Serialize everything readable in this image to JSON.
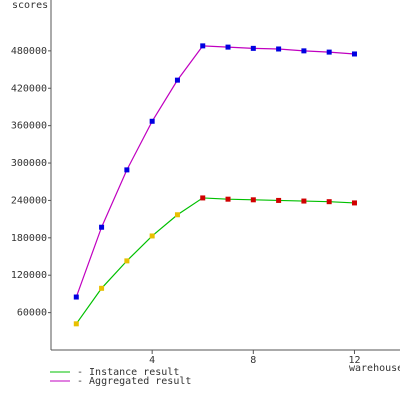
{
  "chart_data": {
    "type": "line",
    "y_label": "scores",
    "x_label": "warehouses",
    "x": [
      1,
      2,
      3,
      4,
      5,
      6,
      7,
      8,
      9,
      10,
      11,
      12
    ],
    "series": [
      {
        "name": "- Instance result",
        "color": "#00c000",
        "marker_colors": [
          "#e8c000",
          "#e8c000",
          "#e8c000",
          "#e8c000",
          "#e8c000",
          "#d00000",
          "#d00000",
          "#d00000",
          "#d00000",
          "#d00000",
          "#d00000",
          "#d00000"
        ],
        "values": [
          42000,
          99000,
          143000,
          183000,
          217000,
          244000,
          242000,
          241000,
          240000,
          239000,
          238000,
          236000
        ]
      },
      {
        "name": "- Aggregated result",
        "color": "#c000c0",
        "marker_colors": [
          "#0000e0",
          "#0000e0",
          "#0000e0",
          "#0000e0",
          "#0000e0",
          "#0000e0",
          "#0000e0",
          "#0000e0",
          "#0000e0",
          "#0000e0",
          "#0000e0",
          "#0000e0"
        ],
        "values": [
          85000,
          197000,
          289000,
          367000,
          433000,
          488000,
          486000,
          484000,
          483000,
          480000,
          478000,
          475000
        ]
      }
    ],
    "xlim": [
      0,
      13.8
    ],
    "ylim": [
      0,
      560000
    ],
    "xticks": [
      4,
      8,
      12
    ],
    "yticks": [
      60000,
      120000,
      180000,
      240000,
      300000,
      360000,
      420000,
      480000
    ]
  }
}
